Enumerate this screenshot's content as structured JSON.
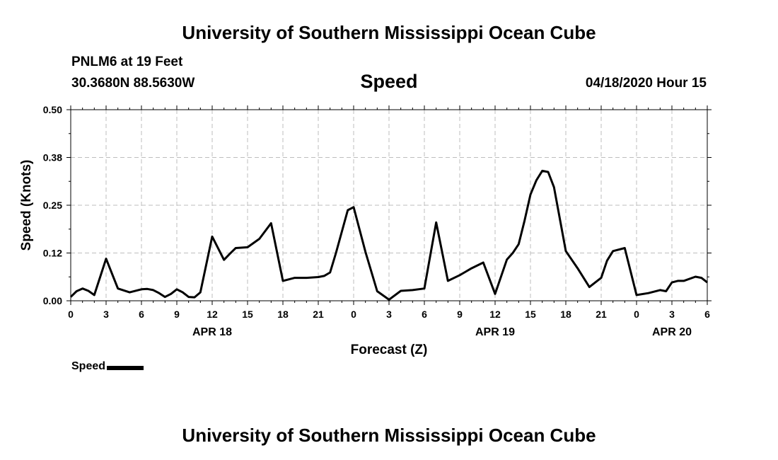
{
  "header": {
    "title": "University of Southern Mississippi Ocean Cube",
    "station": "PNLM6 at 19 Feet",
    "coords": "30.3680N 88.5630W",
    "datetime": "04/18/2020 Hour 15"
  },
  "footer": {
    "title": "University of Southern Mississippi Ocean Cube"
  },
  "chart_data": {
    "type": "line",
    "title": "Speed",
    "xlabel": "Forecast (Z)",
    "ylabel": "Speed (Knots)",
    "ylim": [
      0,
      0.5
    ],
    "xlim": [
      0,
      54
    ],
    "y_ticks": [
      0.0,
      0.125,
      0.25,
      0.375,
      0.5
    ],
    "y_tick_labels": [
      "0.00",
      "0.12",
      "0.25",
      "0.38",
      "0.50"
    ],
    "x_ticks": [
      0,
      3,
      6,
      9,
      12,
      15,
      18,
      21,
      24,
      27,
      30,
      33,
      36,
      39,
      42,
      45,
      48,
      51,
      54
    ],
    "x_tick_labels": [
      "0",
      "3",
      "6",
      "9",
      "12",
      "15",
      "18",
      "21",
      "0",
      "3",
      "6",
      "9",
      "12",
      "15",
      "18",
      "21",
      "0",
      "3",
      "6"
    ],
    "day_labels": [
      {
        "label": "APR 18",
        "x": 12
      },
      {
        "label": "APR 19",
        "x": 36
      },
      {
        "label": "APR 20",
        "x": 51
      }
    ],
    "grid": true,
    "legend": {
      "position": "bottom-left",
      "label": "Speed"
    },
    "series": [
      {
        "name": "Speed",
        "color": "#000000",
        "x": [
          0,
          0.5,
          1,
          1.5,
          2,
          3,
          4,
          5,
          6,
          6.5,
          7,
          7.5,
          8,
          8.5,
          9,
          9.5,
          10,
          10.5,
          11,
          12,
          13,
          13.5,
          14,
          15,
          16,
          17,
          18,
          19,
          20,
          21,
          21.5,
          22,
          22.5,
          23.5,
          24,
          25,
          26,
          27,
          28,
          29,
          30,
          31,
          32,
          33,
          33.5,
          34,
          35,
          36,
          37,
          37.5,
          38,
          38.5,
          39,
          39.5,
          40,
          40.5,
          41,
          42,
          43,
          44,
          45,
          45.5,
          46,
          47,
          48,
          49,
          50,
          50.5,
          51,
          51.5,
          52,
          53,
          53.5,
          54
        ],
        "values": [
          0.01,
          0.025,
          0.032,
          0.026,
          0.015,
          0.11,
          0.032,
          0.022,
          0.03,
          0.031,
          0.028,
          0.02,
          0.01,
          0.018,
          0.03,
          0.022,
          0.01,
          0.009,
          0.022,
          0.168,
          0.107,
          0.123,
          0.138,
          0.14,
          0.162,
          0.203,
          0.052,
          0.06,
          0.06,
          0.062,
          0.065,
          0.074,
          0.125,
          0.237,
          0.245,
          0.128,
          0.025,
          0.003,
          0.026,
          0.028,
          0.032,
          0.205,
          0.052,
          0.067,
          0.076,
          0.085,
          0.1,
          0.018,
          0.108,
          0.125,
          0.148,
          0.21,
          0.278,
          0.315,
          0.34,
          0.337,
          0.297,
          0.13,
          0.085,
          0.036,
          0.06,
          0.105,
          0.13,
          0.138,
          0.015,
          0.02,
          0.028,
          0.025,
          0.048,
          0.052,
          0.052,
          0.063,
          0.06,
          0.048
        ]
      }
    ]
  }
}
